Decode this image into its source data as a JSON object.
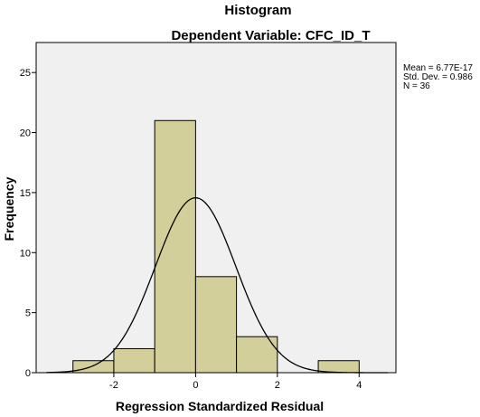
{
  "chart_data": {
    "type": "bar",
    "title": "Histogram",
    "subtitle": "Dependent Variable: CFC_ID_T",
    "xlabel": "Regression Standardized Residual",
    "ylabel": "Frequency",
    "bins": [
      {
        "x0": -3,
        "x1": -2,
        "count": 1
      },
      {
        "x0": -2,
        "x1": -1,
        "count": 2
      },
      {
        "x0": -1,
        "x1": 0,
        "count": 21
      },
      {
        "x0": 0,
        "x1": 1,
        "count": 8
      },
      {
        "x0": 1,
        "x1": 2,
        "count": 3
      },
      {
        "x0": 2,
        "x1": 3,
        "count": 0
      },
      {
        "x0": 3,
        "x1": 4,
        "count": 1
      }
    ],
    "xlim": [
      -3.9,
      4.9
    ],
    "ylim": [
      0,
      27.5
    ],
    "xticks": [
      -2,
      0,
      2,
      4
    ],
    "yticks": [
      0,
      5,
      10,
      15,
      20,
      25
    ],
    "normal_curve": {
      "mean": 6.77e-17,
      "sd": 0.986,
      "n": 36,
      "bin_width": 1
    },
    "legend": [
      "Mean = 6.77E-17",
      "Std. Dev. = 0.986",
      "N = 36"
    ],
    "legend_position": "right",
    "colors": {
      "bar_fill": "#d3cf9a",
      "plot_bg": "#f0f0f0",
      "line": "#000000"
    }
  }
}
